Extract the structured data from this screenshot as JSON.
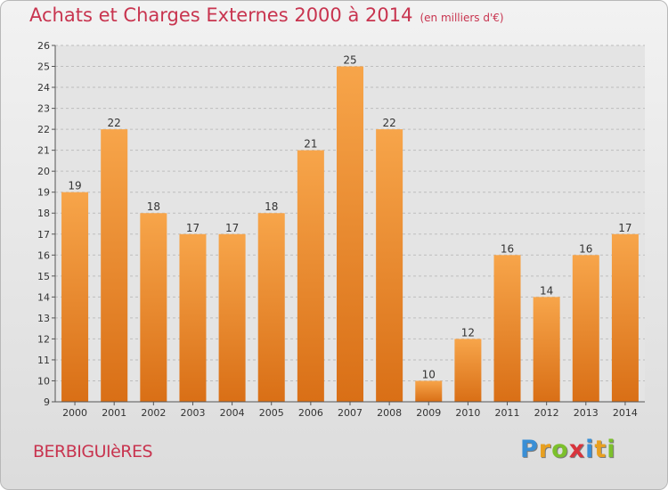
{
  "header": {
    "title": "Achats et Charges Externes 2000 à 2014",
    "subtitle": "(en milliers d'€)"
  },
  "footer": {
    "place": "BERBIGUIèRES",
    "logo_letters": [
      "P",
      "r",
      "o",
      "x",
      "i",
      "t",
      "i"
    ],
    "logo_colors": [
      "#3a8fd6",
      "#e8a020",
      "#7cc02c",
      "#d8343c",
      "#3a8fd6",
      "#e8a020",
      "#7cc02c"
    ]
  },
  "chart_data": {
    "type": "bar",
    "categories": [
      "2000",
      "2001",
      "2002",
      "2003",
      "2004",
      "2005",
      "2006",
      "2007",
      "2008",
      "2009",
      "2010",
      "2011",
      "2012",
      "2013",
      "2014"
    ],
    "values": [
      19,
      22,
      18,
      17,
      17,
      18,
      21,
      25,
      22,
      10,
      12,
      16,
      14,
      16,
      17
    ],
    "title": "Achats et Charges Externes 2000 à 2014",
    "subtitle": "(en milliers d'€)",
    "xlabel": "",
    "ylabel": "",
    "ylim": [
      9,
      26
    ],
    "yticks": [
      9,
      10,
      11,
      12,
      13,
      14,
      15,
      16,
      17,
      18,
      19,
      20,
      21,
      22,
      23,
      24,
      25,
      26
    ],
    "grid": true,
    "bar_color_top": "#f7a54a",
    "bar_color_bottom": "#d96f16"
  }
}
